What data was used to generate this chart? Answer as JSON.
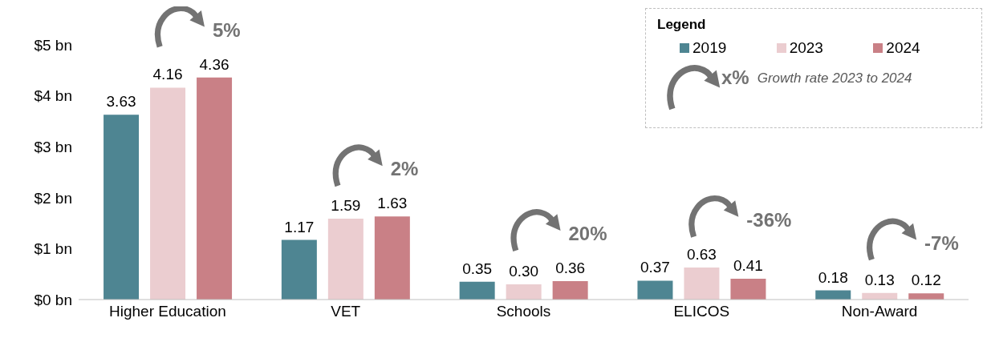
{
  "chart_data": {
    "type": "bar",
    "categories": [
      "Higher Education",
      "VET",
      "Schools",
      "ELICOS",
      "Non-Award"
    ],
    "series": [
      {
        "name": "2019",
        "color": "#4e8592",
        "values": [
          3.63,
          1.17,
          0.35,
          0.37,
          0.18
        ],
        "value_labels": [
          "3.63",
          "1.17",
          "0.35",
          "0.37",
          "0.18"
        ]
      },
      {
        "name": "2023",
        "color": "#ebcdd0",
        "values": [
          4.16,
          1.59,
          0.3,
          0.63,
          0.13
        ],
        "value_labels": [
          "4.16",
          "1.59",
          "0.30",
          "0.63",
          "0.13"
        ]
      },
      {
        "name": "2024",
        "color": "#c98086",
        "values": [
          4.36,
          1.63,
          0.36,
          0.41,
          0.12
        ],
        "value_labels": [
          "4.36",
          "1.63",
          "0.36",
          "0.41",
          "0.12"
        ]
      }
    ],
    "ylim": [
      0,
      5
    ],
    "yticks": [
      {
        "value": 0,
        "label": "$0 bn"
      },
      {
        "value": 1,
        "label": "$1 bn"
      },
      {
        "value": 2,
        "label": "$2 bn"
      },
      {
        "value": 3,
        "label": "$3 bn"
      },
      {
        "value": 4,
        "label": "$4 bn"
      },
      {
        "value": 5,
        "label": "$5 bn"
      }
    ],
    "grid": false,
    "legend": "top right",
    "legend_title": "Legend",
    "annotations": [
      "5%",
      "2%",
      "20%",
      "-36%",
      "-7%",
      "x%",
      "Growth rate 2023 to 2024"
    ]
  }
}
